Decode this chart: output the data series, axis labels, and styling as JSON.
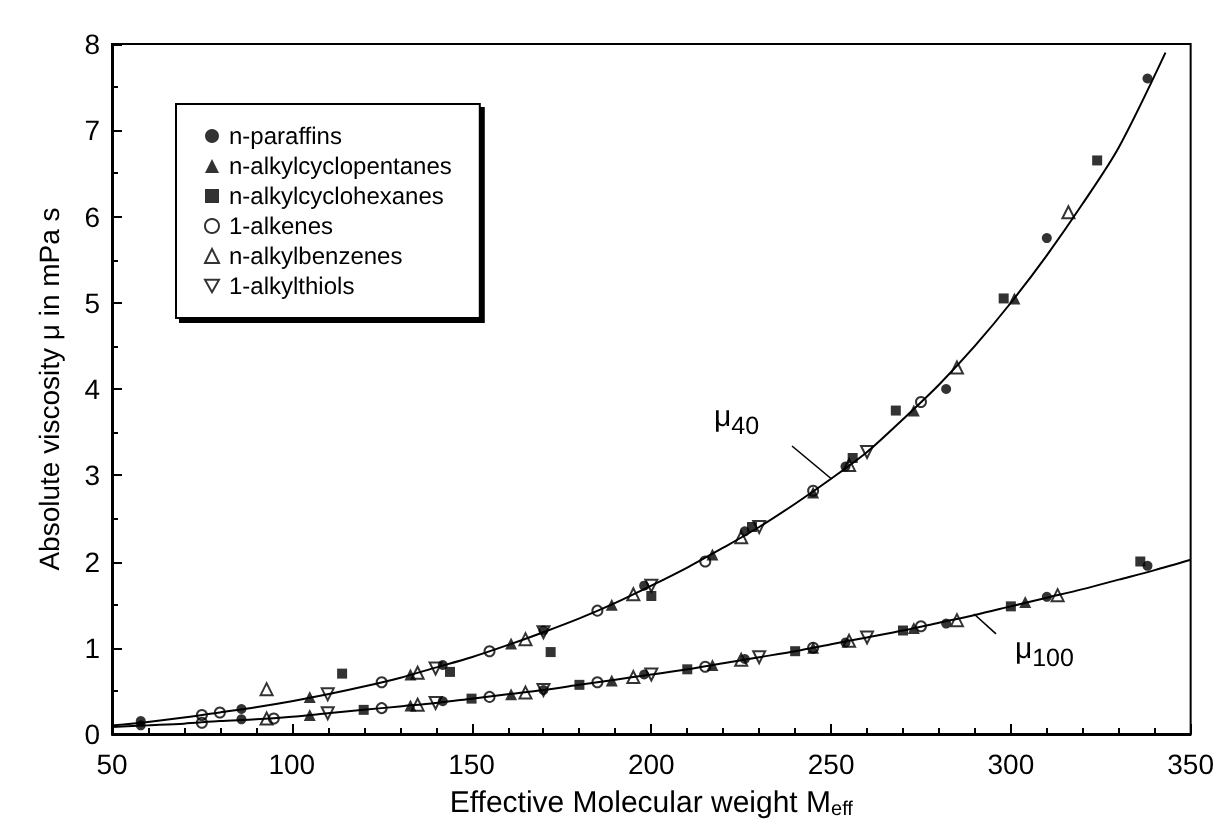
{
  "chart_data": {
    "type": "scatter",
    "xlabel": "Effective Molecular weight M$_{eff}$",
    "ylabel": "Absolute viscosity μ in mPa s",
    "xlim": [
      50,
      350
    ],
    "xticks": [
      50,
      100,
      150,
      200,
      250,
      300,
      350
    ],
    "ylim": [
      0,
      8
    ],
    "yticks": [
      0,
      1,
      2,
      3,
      4,
      5,
      6,
      7,
      8
    ],
    "grid": false,
    "legend": "top left",
    "series": [
      {
        "name": "n-paraffins",
        "color": "#000000",
        "marker": "circle",
        "x": [
          58,
          86,
          142,
          170,
          198,
          226,
          254,
          282,
          310,
          338,
          58,
          86,
          142,
          170,
          198,
          226,
          254,
          282,
          310,
          338
        ],
        "values": [
          0.15,
          0.29,
          0.8,
          1.2,
          1.72,
          2.35,
          3.1,
          4.0,
          5.75,
          7.6,
          0.1,
          0.17,
          0.38,
          0.51,
          0.69,
          0.87,
          1.06,
          1.28,
          1.59,
          1.95
        ]
      },
      {
        "name": "n-alkylcyclopentanes",
        "color": "#000000",
        "marker": "triangle",
        "x": [
          105,
          133,
          161,
          189,
          217,
          245,
          273,
          301,
          105,
          133,
          161,
          189,
          217,
          245,
          273,
          304
        ],
        "values": [
          0.43,
          0.69,
          1.05,
          1.5,
          2.08,
          2.8,
          3.75,
          5.05,
          0.22,
          0.33,
          0.46,
          0.62,
          0.8,
          1.0,
          1.23,
          1.53
        ]
      },
      {
        "name": "n-alkylcyclohexanes",
        "color": "#000000",
        "marker": "square",
        "x": [
          114,
          144,
          172,
          200,
          228,
          256,
          268,
          298,
          324,
          120,
          150,
          180,
          210,
          240,
          270,
          300,
          336
        ],
        "values": [
          0.7,
          0.72,
          0.95,
          1.6,
          2.4,
          3.2,
          3.75,
          5.05,
          6.65,
          0.28,
          0.41,
          0.57,
          0.75,
          0.96,
          1.2,
          1.48,
          2.0
        ]
      },
      {
        "name": "1-alkenes",
        "color": "#000000",
        "marker": "circle-open",
        "x": [
          75,
          80,
          125,
          155,
          185,
          215,
          245,
          275,
          75,
          95,
          125,
          155,
          185,
          215,
          245,
          275
        ],
        "values": [
          0.22,
          0.25,
          0.6,
          0.96,
          1.43,
          2.0,
          2.82,
          3.85,
          0.13,
          0.18,
          0.3,
          0.43,
          0.6,
          0.78,
          1.0,
          1.25
        ]
      },
      {
        "name": "n-alkylbenzenes",
        "color": "#000000",
        "marker": "triangle-open",
        "x": [
          93,
          135,
          165,
          195,
          225,
          255,
          285,
          316,
          93,
          135,
          165,
          195,
          225,
          255,
          285,
          313
        ],
        "values": [
          0.52,
          0.71,
          1.1,
          1.62,
          2.28,
          3.12,
          4.25,
          6.05,
          0.18,
          0.34,
          0.48,
          0.66,
          0.86,
          1.08,
          1.32,
          1.61
        ]
      },
      {
        "name": "1-alkylthiols",
        "color": "#000000",
        "marker": "triangle-down-open",
        "x": [
          110,
          140,
          170,
          200,
          230,
          260,
          110,
          140,
          170,
          200,
          230,
          260
        ],
        "values": [
          0.46,
          0.76,
          1.18,
          1.72,
          2.4,
          3.27,
          0.24,
          0.36,
          0.51,
          0.69,
          0.89,
          1.12
        ]
      },
      {
        "name": "μ$_{40}$",
        "type": "line",
        "color": "#000000",
        "x": [
          50,
          60,
          70,
          80,
          90,
          100,
          110,
          120,
          130,
          140,
          150,
          160,
          170,
          180,
          190,
          200,
          210,
          220,
          230,
          240,
          250,
          260,
          270,
          280,
          290,
          300,
          310,
          320,
          330,
          343
        ],
        "values": [
          0.1,
          0.14,
          0.19,
          0.25,
          0.31,
          0.38,
          0.46,
          0.55,
          0.65,
          0.77,
          0.89,
          1.03,
          1.18,
          1.34,
          1.52,
          1.72,
          1.93,
          2.16,
          2.4,
          2.67,
          2.96,
          3.27,
          3.65,
          4.05,
          4.5,
          5.0,
          5.55,
          6.15,
          6.8,
          7.9
        ]
      },
      {
        "name": "μ$_{100}$",
        "type": "line",
        "color": "#000000",
        "x": [
          50,
          60,
          70,
          80,
          90,
          100,
          110,
          120,
          130,
          140,
          150,
          160,
          170,
          180,
          190,
          200,
          210,
          220,
          230,
          240,
          250,
          260,
          270,
          280,
          290,
          300,
          310,
          320,
          330,
          340,
          350
        ],
        "values": [
          0.08,
          0.1,
          0.12,
          0.15,
          0.17,
          0.2,
          0.24,
          0.28,
          0.32,
          0.36,
          0.41,
          0.46,
          0.51,
          0.57,
          0.63,
          0.69,
          0.75,
          0.82,
          0.89,
          0.96,
          1.04,
          1.12,
          1.2,
          1.29,
          1.38,
          1.48,
          1.58,
          1.68,
          1.79,
          1.9,
          2.02
        ]
      }
    ]
  }
}
